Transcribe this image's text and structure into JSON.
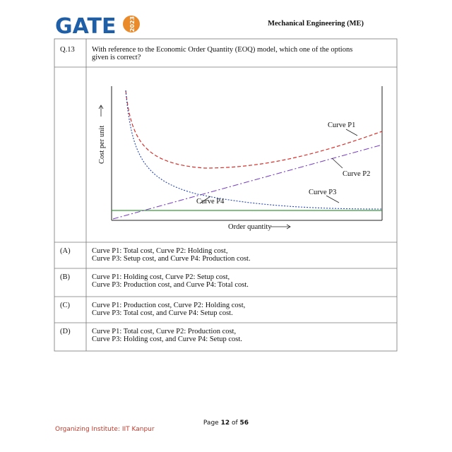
{
  "header": {
    "logo": "GATE",
    "logo_year": "2023",
    "paper": "Mechanical Engineering (ME)"
  },
  "question": {
    "number": "Q.13",
    "text": "With reference to the Economic Order Quantity (EOQ) model, which one of the options given is correct?",
    "figure": {
      "y_label": "Cost per unit",
      "x_label": "Order quantity",
      "curves": [
        "Curve P1",
        "Curve P2",
        "Curve P3",
        "Curve P4"
      ]
    }
  },
  "options": [
    {
      "label": "(A)",
      "lines": [
        "Curve P1: Total cost, Curve P2: Holding cost,",
        "Curve P3: Setup cost, and Curve P4: Production cost."
      ]
    },
    {
      "label": "(B)",
      "lines": [
        "Curve P1: Holding cost, Curve P2: Setup cost,",
        "Curve P3: Production cost, and Curve P4: Total cost."
      ]
    },
    {
      "label": "(C)",
      "lines": [
        "Curve P1: Production cost, Curve P2: Holding cost,",
        "Curve P3: Total cost, and Curve P4: Setup cost."
      ]
    },
    {
      "label": "(D)",
      "lines": [
        "Curve P1: Total cost, Curve P2: Production cost,",
        "Curve P3: Holding cost, and Curve P4: Setup cost."
      ]
    }
  ],
  "footer": {
    "page_label": "Page",
    "page_number": "12",
    "of_label": "of",
    "page_total": "56",
    "institute": "Organizing Institute: IIT Kanpur"
  }
}
